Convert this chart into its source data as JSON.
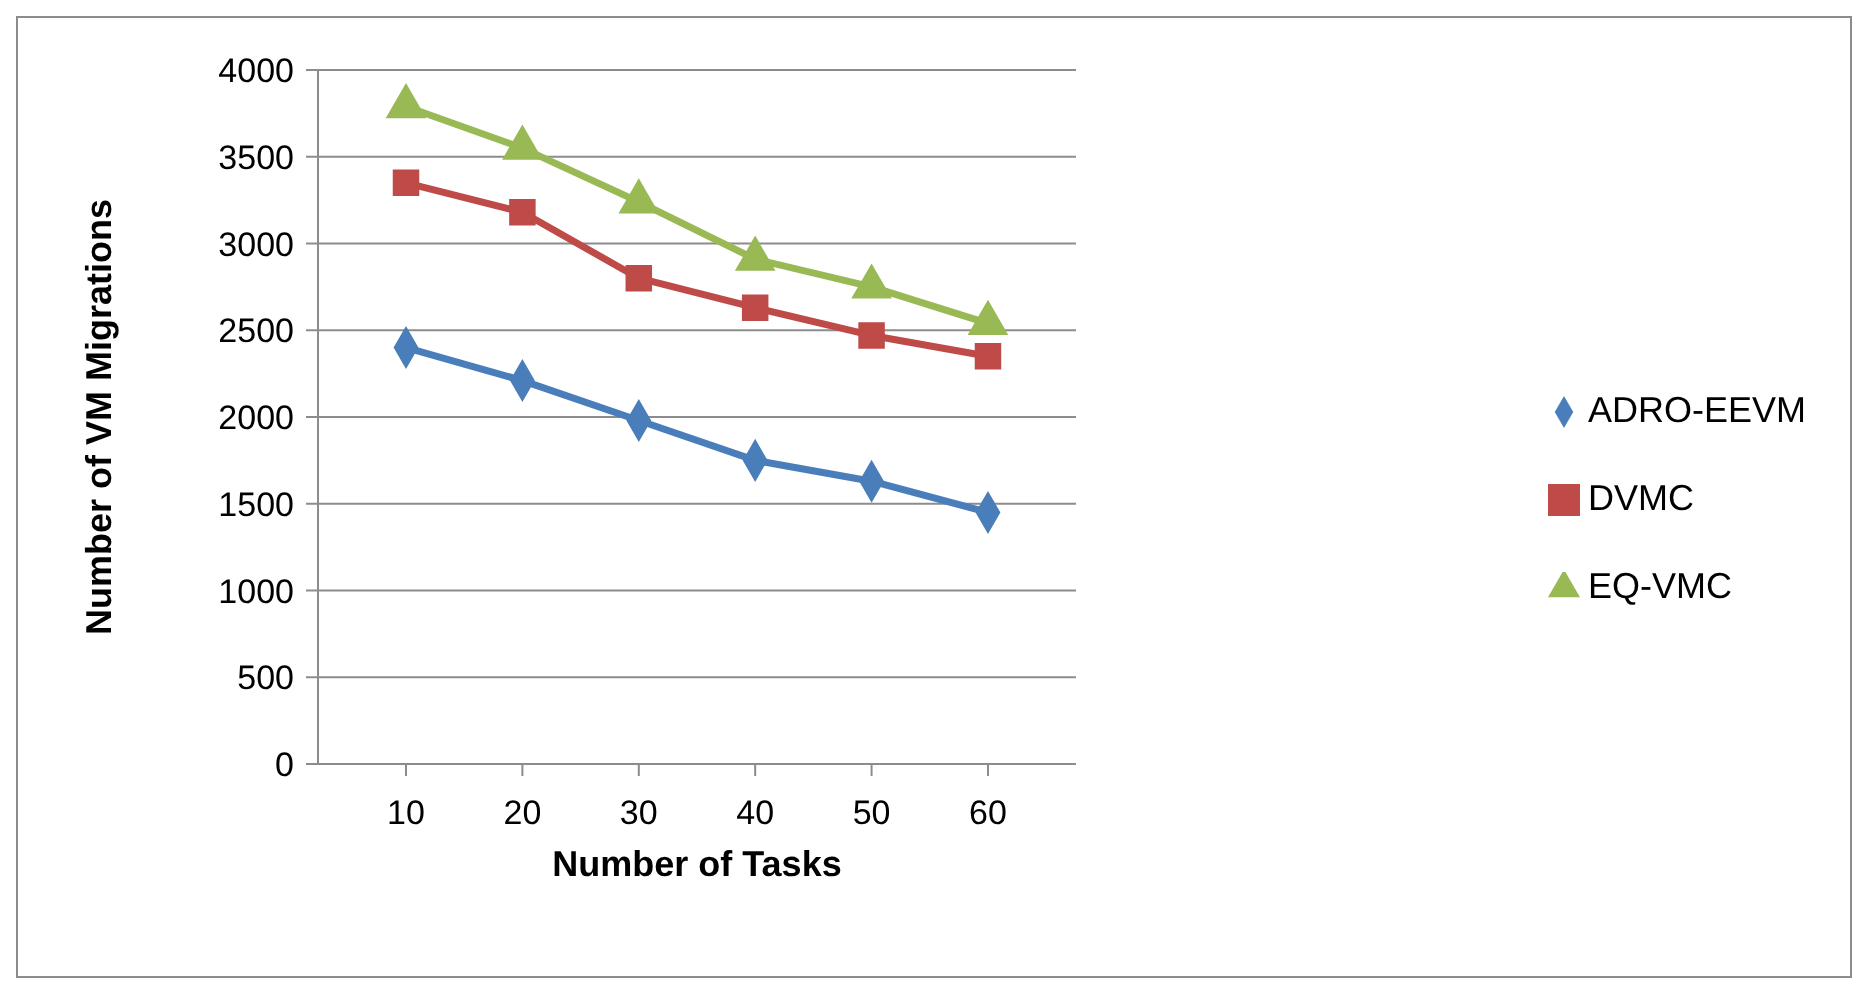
{
  "chart_data": {
    "type": "line",
    "xlabel": "Number of Tasks",
    "ylabel": "Number of VM Migrations",
    "categories": [
      "10",
      "20",
      "30",
      "40",
      "50",
      "60"
    ],
    "series": [
      {
        "name": "ADRO-EEVM",
        "color": "#4a7ebb",
        "marker": "diamond",
        "values": [
          2400,
          2210,
          1980,
          1750,
          1630,
          1450
        ]
      },
      {
        "name": "DVMC",
        "color": "#be4b48",
        "marker": "square",
        "values": [
          3350,
          3180,
          2800,
          2630,
          2470,
          2350
        ]
      },
      {
        "name": "EQ-VMC",
        "color": "#98b954",
        "marker": "triangle",
        "values": [
          3790,
          3550,
          3240,
          2910,
          2750,
          2540
        ]
      }
    ],
    "ylim": [
      0,
      4000
    ],
    "yticks": [
      0,
      500,
      1000,
      1500,
      2000,
      2500,
      3000,
      3500,
      4000
    ],
    "grid": "y",
    "legend": "right"
  }
}
